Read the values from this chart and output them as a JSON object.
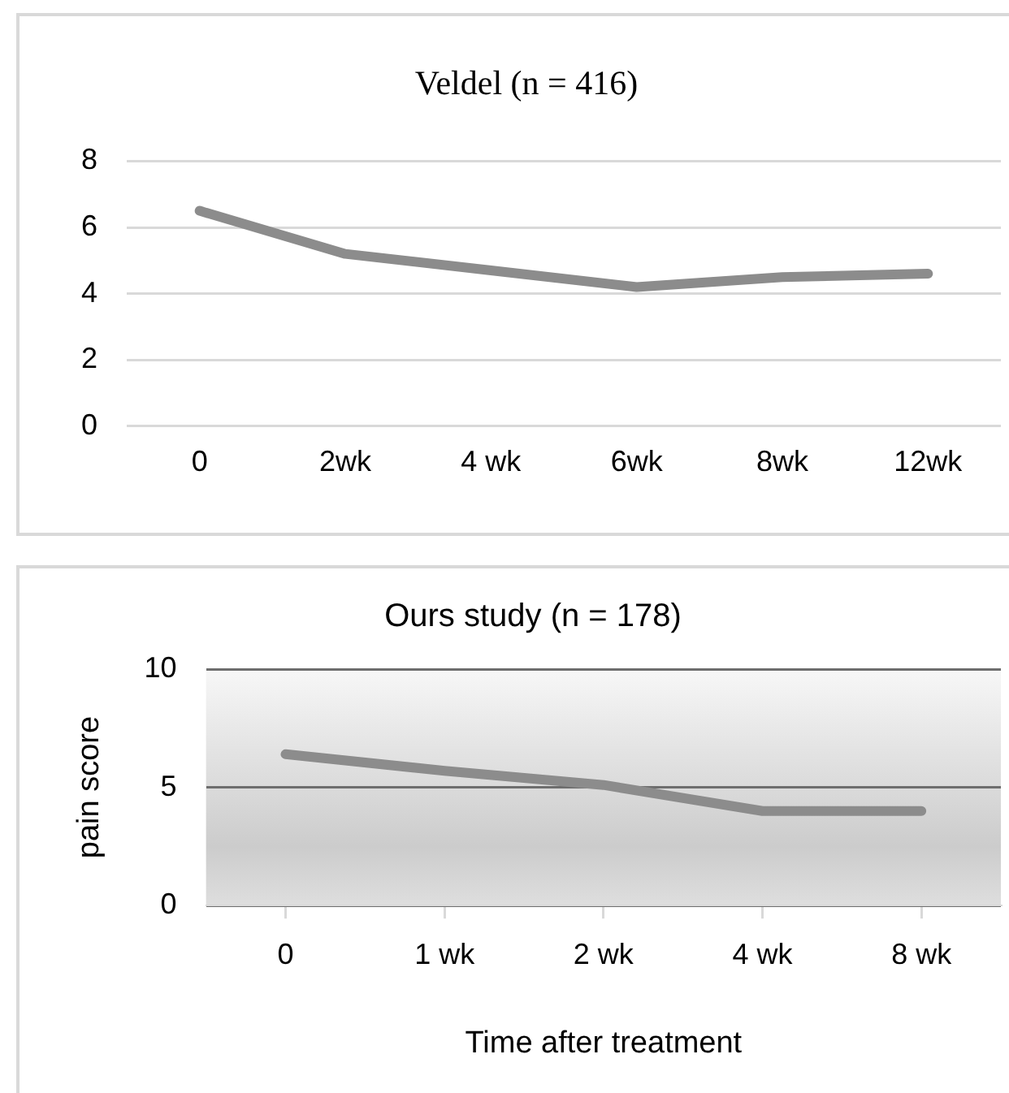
{
  "chart_data": [
    {
      "type": "line",
      "title": "Veldel (n = 416)",
      "categories": [
        "0",
        "2wk",
        "4 wk",
        "6wk",
        "8wk",
        "12wk"
      ],
      "series": [
        {
          "color": "#8c8c8c",
          "values": [
            6.5,
            5.2,
            4.7,
            4.2,
            4.5,
            4.6
          ]
        }
      ],
      "ylim": [
        0,
        8
      ],
      "yticks": [
        0,
        2,
        4,
        6,
        8
      ],
      "grid": "y",
      "legend": false,
      "marker": "none",
      "line_style": "solid"
    },
    {
      "type": "line",
      "title": "Ours study (n = 178)",
      "xlabel": "Time after treatment",
      "ylabel": "pain score",
      "categories": [
        "0",
        "1 wk",
        "2 wk",
        "4 wk",
        "8 wk"
      ],
      "series": [
        {
          "color": "#8c8c8c",
          "values": [
            6.4,
            5.7,
            5.1,
            4.0,
            4.0
          ]
        }
      ],
      "ylim": [
        0,
        10
      ],
      "yticks": [
        0,
        5,
        10
      ],
      "grid": "y",
      "legend": false,
      "marker": "none",
      "line_style": "solid"
    }
  ]
}
